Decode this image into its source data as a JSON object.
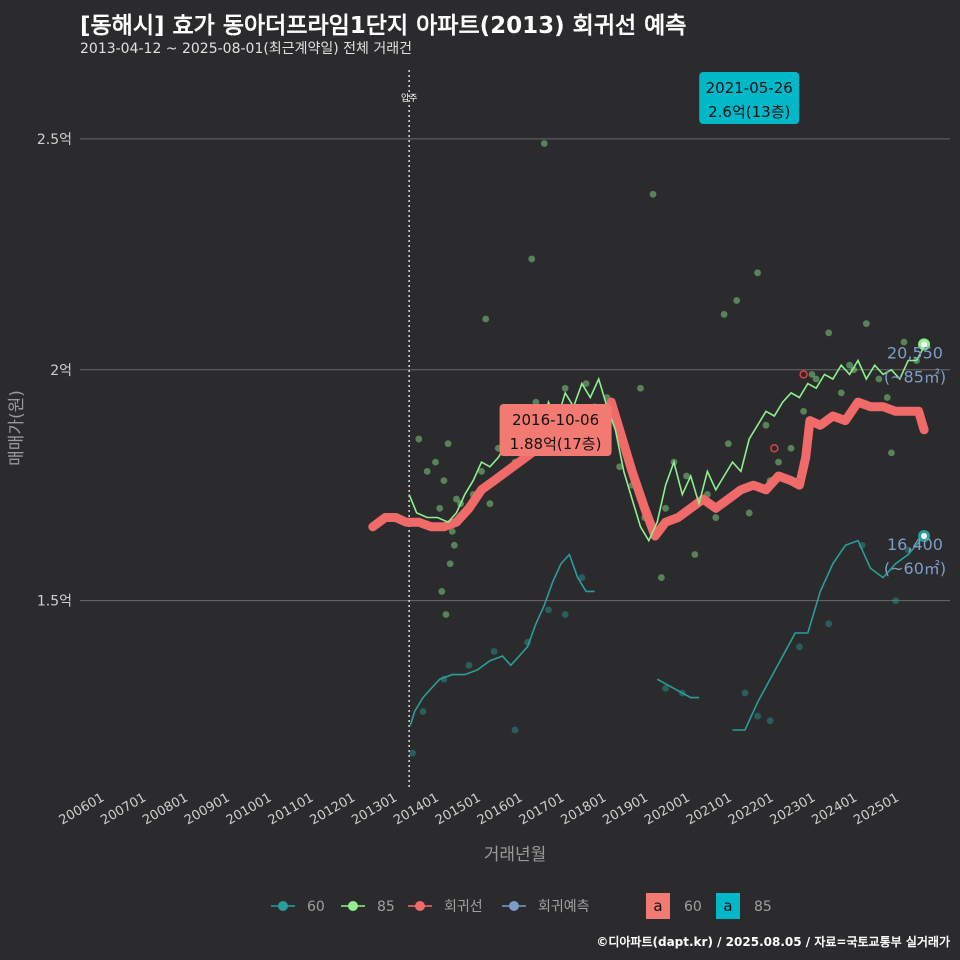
{
  "header": {
    "title": "[동해시] 효가 동아더프라임1단지 아파트(2013) 회귀선 예측",
    "subtitle": "2013-04-12 ~ 2025-08-01(최근계약일) 전체 거래건"
  },
  "footer": {
    "credit": "©디아파트(dapt.kr) / 2025.08.05 / 자료=국토교통부 실거래가"
  },
  "colors": {
    "s60": "#2a9d9a",
    "s85": "#90ee90",
    "reg": "#f06a6a",
    "pred": "#7e9cc8",
    "teal_box": "#00b8c8",
    "grid": "#6a6a6a",
    "bg": "#2b2b2d"
  },
  "chart_data": {
    "type": "line",
    "title": "[동해시] 효가 동아더프라임1단지 아파트(2013) 회귀선 예측",
    "xlabel": "거래년월",
    "ylabel": "매매가(원)",
    "xlim": [
      2005.4,
      2026.2
    ],
    "ylim": [
      1.09,
      2.66
    ],
    "y_ticks": [
      1.5,
      2.0,
      2.5
    ],
    "y_tick_labels": [
      "1.5억",
      "2억",
      "2.5억"
    ],
    "x_tick_labels": [
      "200601",
      "200701",
      "200801",
      "200901",
      "201001",
      "201101",
      "201201",
      "201301",
      "201401",
      "201501",
      "201601",
      "201701",
      "201801",
      "201901",
      "202001",
      "202101",
      "202201",
      "202301",
      "202401",
      "202501"
    ],
    "vline": {
      "x": 2013.27,
      "label": "입주"
    },
    "series": [
      {
        "name": "85",
        "kind": "line",
        "x": [
          2013.27,
          2013.45,
          2013.7,
          2013.95,
          2014.2,
          2014.4,
          2014.6,
          2014.8,
          2015.0,
          2015.2,
          2015.4,
          2015.6,
          2015.8,
          2016.0,
          2016.2,
          2016.4,
          2016.6,
          2016.8,
          2017.0,
          2017.2,
          2017.4,
          2017.6,
          2017.8,
          2018.0,
          2018.2,
          2018.4,
          2018.6,
          2018.8,
          2019.0,
          2019.2,
          2019.4,
          2019.6,
          2019.8,
          2020.0,
          2020.2,
          2020.4,
          2020.6,
          2020.8,
          2021.0,
          2021.2,
          2021.4,
          2021.6,
          2021.8,
          2022.0,
          2022.2,
          2022.4,
          2022.6,
          2022.8,
          2023.0,
          2023.2,
          2023.4,
          2023.6,
          2023.8,
          2024.0,
          2024.2,
          2024.4,
          2024.6,
          2024.8,
          2025.0,
          2025.2,
          2025.4,
          2025.58
        ],
        "y": [
          1.73,
          1.69,
          1.68,
          1.68,
          1.67,
          1.69,
          1.73,
          1.76,
          1.8,
          1.79,
          1.81,
          1.84,
          1.82,
          1.87,
          1.9,
          1.86,
          1.93,
          1.89,
          1.95,
          1.92,
          1.97,
          1.94,
          1.98,
          1.92,
          1.87,
          1.78,
          1.72,
          1.66,
          1.63,
          1.67,
          1.75,
          1.8,
          1.73,
          1.77,
          1.71,
          1.78,
          1.74,
          1.77,
          1.8,
          1.78,
          1.85,
          1.88,
          1.91,
          1.9,
          1.93,
          1.95,
          1.94,
          1.97,
          1.96,
          1.99,
          1.98,
          2.01,
          1.99,
          2.02,
          1.98,
          2.01,
          1.99,
          2.0,
          1.98,
          2.02,
          2.02,
          2.05
        ]
      },
      {
        "name": "60",
        "kind": "line",
        "segments": [
          {
            "x": [
              2013.3,
              2013.4,
              2013.6,
              2013.8,
              2014.0,
              2014.3,
              2014.6,
              2014.9,
              2015.2,
              2015.5,
              2015.7,
              2015.9,
              2016.1,
              2016.3,
              2016.5,
              2016.7,
              2016.9,
              2017.1,
              2017.3,
              2017.5,
              2017.7
            ],
            "y": [
              1.23,
              1.26,
              1.29,
              1.31,
              1.33,
              1.34,
              1.34,
              1.35,
              1.37,
              1.38,
              1.36,
              1.38,
              1.4,
              1.45,
              1.49,
              1.54,
              1.58,
              1.6,
              1.55,
              1.52,
              1.52
            ]
          },
          {
            "x": [
              2019.2,
              2019.4,
              2019.6,
              2019.8,
              2020.0,
              2020.2
            ],
            "y": [
              1.33,
              1.32,
              1.31,
              1.3,
              1.29,
              1.29
            ]
          },
          {
            "x": [
              2021.0,
              2021.3,
              2021.6,
              2021.9,
              2022.2,
              2022.5,
              2022.8,
              2023.1,
              2023.4,
              2023.7,
              2024.0,
              2024.3,
              2024.6,
              2024.9,
              2025.2,
              2025.58
            ],
            "y": [
              1.22,
              1.22,
              1.28,
              1.33,
              1.38,
              1.43,
              1.43,
              1.52,
              1.58,
              1.62,
              1.63,
              1.57,
              1.55,
              1.58,
              1.6,
              1.64
            ]
          }
        ]
      },
      {
        "name": "회귀선",
        "kind": "line",
        "x": [
          2012.4,
          2012.7,
          2012.95,
          2013.2,
          2013.5,
          2013.8,
          2014.1,
          2014.4,
          2014.7,
          2015.0,
          2015.3,
          2015.6,
          2015.9,
          2016.2,
          2016.5,
          2016.8,
          2017.1,
          2017.4,
          2017.7,
          2018.0,
          2018.1,
          2018.3,
          2018.6,
          2018.9,
          2019.15,
          2019.4,
          2019.7,
          2020.0,
          2020.3,
          2020.6,
          2020.9,
          2021.2,
          2021.5,
          2021.8,
          2022.1,
          2022.4,
          2022.6,
          2022.75,
          2022.85,
          2023.1,
          2023.4,
          2023.7,
          2024.0,
          2024.3,
          2024.6,
          2024.9,
          2025.2,
          2025.45,
          2025.58
        ],
        "y": [
          1.66,
          1.68,
          1.68,
          1.67,
          1.67,
          1.66,
          1.66,
          1.67,
          1.7,
          1.74,
          1.76,
          1.78,
          1.8,
          1.82,
          1.84,
          1.86,
          1.86,
          1.85,
          1.87,
          1.9,
          1.93,
          1.87,
          1.78,
          1.7,
          1.64,
          1.67,
          1.68,
          1.7,
          1.72,
          1.7,
          1.72,
          1.74,
          1.75,
          1.74,
          1.77,
          1.76,
          1.75,
          1.81,
          1.89,
          1.88,
          1.9,
          1.89,
          1.93,
          1.92,
          1.92,
          1.91,
          1.91,
          1.91,
          1.87
        ]
      }
    ],
    "scatter85": {
      "x": [
        2013.7,
        2013.9,
        2014.0,
        2014.1,
        2014.2,
        2014.3,
        2014.4,
        2014.6,
        2014.8,
        2015.0,
        2015.2,
        2015.4,
        2015.6,
        2015.8,
        2016.0,
        2016.1,
        2016.3,
        2016.5,
        2016.8,
        2017.0,
        2017.2,
        2017.5,
        2017.7,
        2018.0,
        2018.3,
        2018.6,
        2018.9,
        2019.1,
        2019.4,
        2019.6,
        2019.9,
        2020.1,
        2020.4,
        2020.6,
        2020.9,
        2021.1,
        2021.4,
        2021.6,
        2021.9,
        2022.1,
        2022.4,
        2022.7,
        2023.0,
        2023.3,
        2023.6,
        2023.9,
        2024.2,
        2024.5,
        2024.8,
        2025.1,
        2025.4,
        2013.5,
        2014.5,
        2015.1,
        2016.2,
        2017.1,
        2018.8,
        2019.3,
        2020.8,
        2021.8,
        2022.9,
        2023.8,
        2024.7,
        2014.05,
        2014.15,
        2014.25,
        2014.35
      ],
      "y": [
        1.78,
        1.8,
        1.7,
        1.76,
        1.84,
        1.65,
        1.72,
        1.69,
        1.73,
        1.78,
        1.71,
        1.83,
        1.82,
        1.8,
        1.9,
        1.85,
        1.93,
        2.49,
        1.88,
        1.96,
        1.9,
        1.97,
        1.92,
        1.94,
        1.79,
        1.75,
        1.68,
        2.38,
        1.7,
        1.8,
        1.77,
        1.6,
        1.73,
        1.68,
        1.84,
        2.15,
        1.69,
        2.21,
        1.76,
        1.8,
        1.83,
        1.91,
        1.98,
        2.08,
        1.95,
        2.0,
        2.1,
        1.98,
        1.82,
        2.06,
        2.02,
        1.85,
        1.71,
        2.11,
        2.24,
        1.88,
        1.96,
        1.55,
        2.12,
        1.88,
        1.99,
        2.01,
        1.94,
        1.52,
        1.47,
        1.58,
        1.62
      ]
    },
    "scatter60": {
      "x": [
        2013.35,
        2013.6,
        2014.1,
        2014.7,
        2015.3,
        2015.8,
        2016.1,
        2016.6,
        2017.0,
        2017.4,
        2019.4,
        2019.8,
        2021.3,
        2021.6,
        2021.9,
        2022.6,
        2023.3,
        2024.1,
        2024.9,
        2025.2
      ],
      "y": [
        1.17,
        1.26,
        1.33,
        1.36,
        1.39,
        1.22,
        1.41,
        1.48,
        1.47,
        1.55,
        1.31,
        1.3,
        1.3,
        1.25,
        1.24,
        1.4,
        1.45,
        1.62,
        1.5,
        1.61
      ]
    },
    "regression_markers": {
      "x": [
        2022.0,
        2022.7
      ],
      "y": [
        1.83,
        1.99
      ]
    },
    "annotations": [
      {
        "series": "85",
        "date": "2021-05-26",
        "price": "2.6억(13층)",
        "x": 2021.4,
        "y": 2.6
      },
      {
        "series": "60",
        "date": "2016-10-06",
        "price": "1.88억(17층)",
        "x": 2016.77,
        "y": 1.88
      }
    ],
    "end_labels": [
      {
        "series": "85",
        "value": "20,550",
        "area": "(~85㎡)",
        "x": 2025.58,
        "y": 2.055
      },
      {
        "series": "60",
        "value": "16,400",
        "area": "(~60㎡)",
        "x": 2025.58,
        "y": 1.64
      }
    ],
    "legend": {
      "position": "bottom",
      "items": [
        "60",
        "85",
        "회귀선",
        "회귀예측"
      ],
      "box_items": [
        {
          "letter": "a",
          "label": "60"
        },
        {
          "letter": "a",
          "label": "85"
        }
      ]
    }
  }
}
